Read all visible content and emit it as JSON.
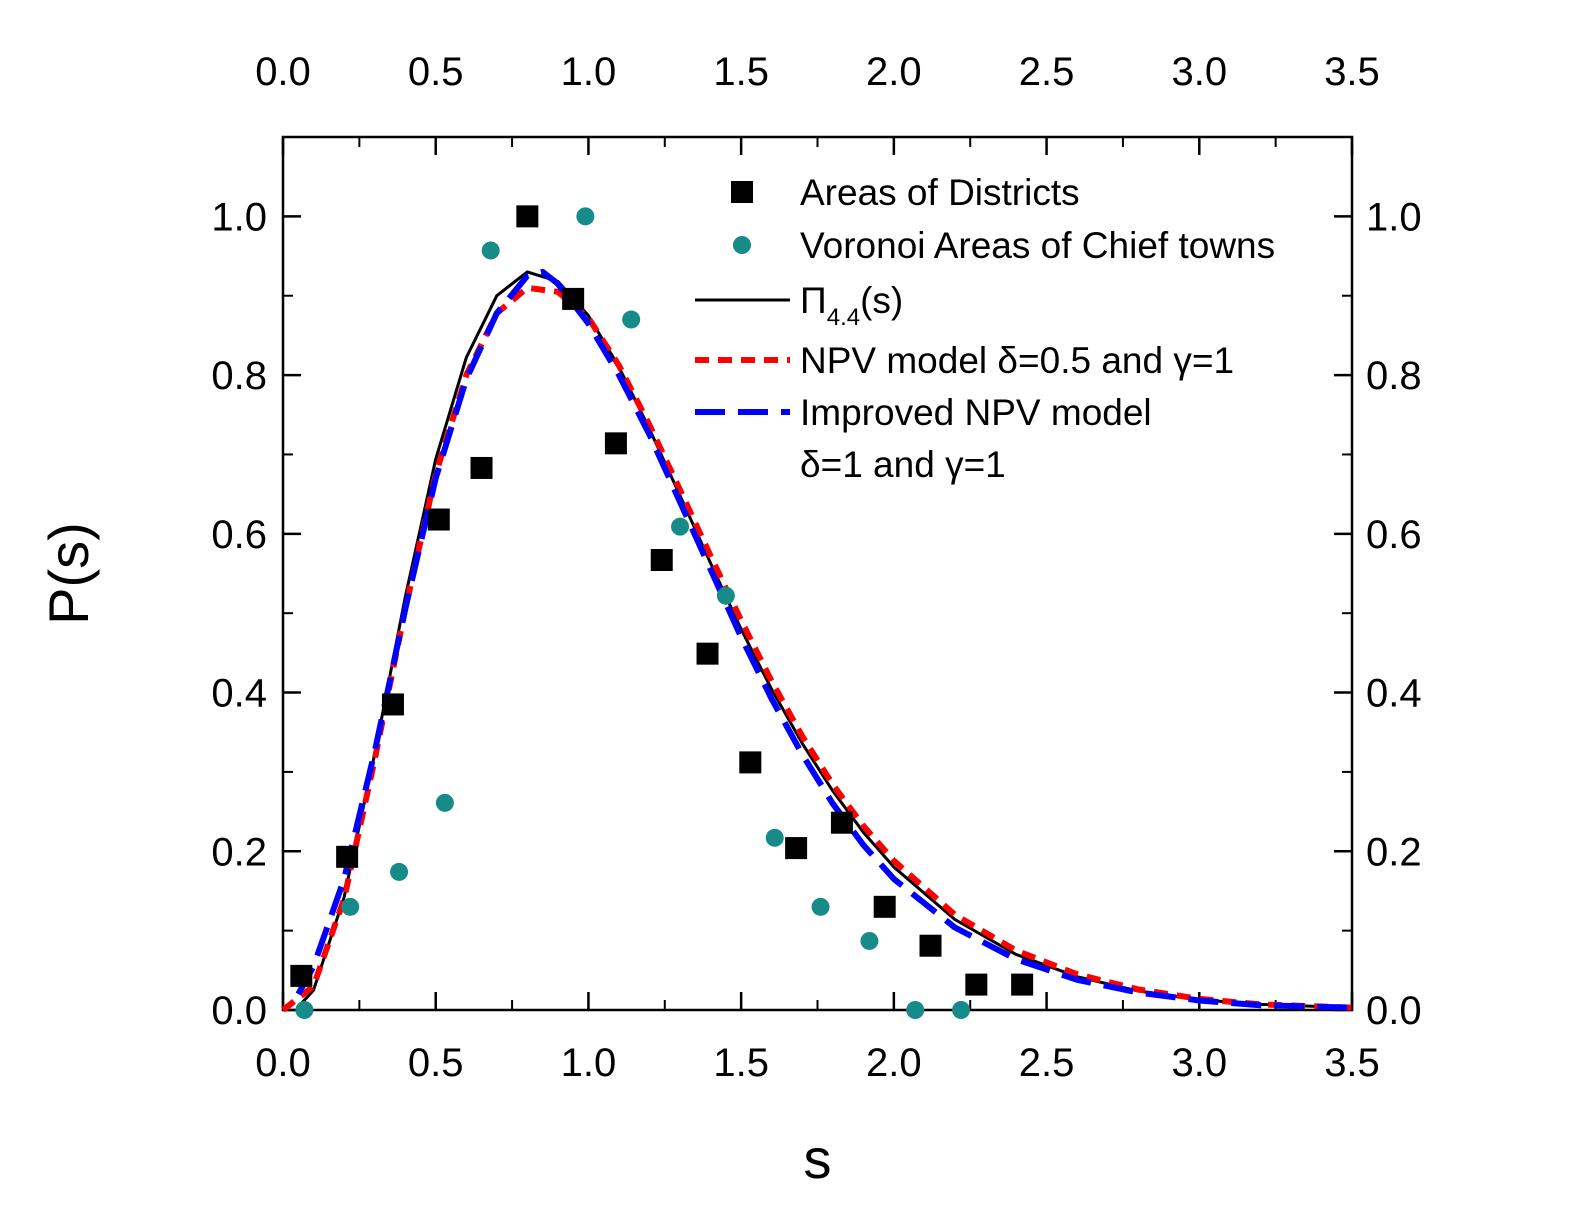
{
  "chart_data": {
    "type": "scatter",
    "xlabel": "s",
    "ylabel": "P(s)",
    "xlim": [
      0.0,
      3.5
    ],
    "ylim": [
      0.0,
      1.1
    ],
    "x_ticks": [
      "0.0",
      "0.5",
      "1.0",
      "1.5",
      "2.0",
      "2.5",
      "3.0",
      "3.5"
    ],
    "y_ticks": [
      "0.0",
      "0.2",
      "0.4",
      "0.6",
      "0.8",
      "1.0"
    ],
    "grid": false,
    "legend_position": "top-right",
    "series": [
      {
        "name": "Areas of Districts",
        "kind": "scatter",
        "marker": "square",
        "color": "#000000",
        "points": [
          [
            0.06,
            0.043
          ],
          [
            0.21,
            0.193
          ],
          [
            0.36,
            0.385
          ],
          [
            0.51,
            0.618
          ],
          [
            0.65,
            0.683
          ],
          [
            0.8,
            1.0
          ],
          [
            0.95,
            0.896
          ],
          [
            1.09,
            0.714
          ],
          [
            1.24,
            0.567
          ],
          [
            1.39,
            0.449
          ],
          [
            1.53,
            0.312
          ],
          [
            1.68,
            0.204
          ],
          [
            1.83,
            0.236
          ],
          [
            1.97,
            0.13
          ],
          [
            2.12,
            0.081
          ],
          [
            2.27,
            0.032
          ],
          [
            2.42,
            0.032
          ]
        ]
      },
      {
        "name": "Voronoi Areas of Chief towns",
        "kind": "scatter",
        "marker": "circle",
        "color": "#178A8A",
        "points": [
          [
            0.07,
            0.0
          ],
          [
            0.22,
            0.13
          ],
          [
            0.38,
            0.174
          ],
          [
            0.53,
            0.261
          ],
          [
            0.68,
            0.957
          ],
          [
            0.99,
            1.0
          ],
          [
            1.14,
            0.87
          ],
          [
            1.3,
            0.609
          ],
          [
            1.45,
            0.522
          ],
          [
            1.61,
            0.217
          ],
          [
            1.76,
            0.13
          ],
          [
            1.92,
            0.087
          ],
          [
            2.07,
            0.0
          ],
          [
            2.22,
            0.0
          ]
        ]
      },
      {
        "name": "Π4.4(s)",
        "name_main": "Π",
        "name_sub": "4.4",
        "name_suffix": "(s)",
        "kind": "line",
        "style": "solid",
        "color": "#000000",
        "points": [
          [
            0.05,
            0.004
          ],
          [
            0.1,
            0.025
          ],
          [
            0.2,
            0.142
          ],
          [
            0.3,
            0.322
          ],
          [
            0.4,
            0.52
          ],
          [
            0.5,
            0.694
          ],
          [
            0.6,
            0.822
          ],
          [
            0.7,
            0.9
          ],
          [
            0.8,
            0.93
          ],
          [
            0.9,
            0.918
          ],
          [
            1.0,
            0.875
          ],
          [
            1.1,
            0.81
          ],
          [
            1.2,
            0.732
          ],
          [
            1.3,
            0.648
          ],
          [
            1.4,
            0.563
          ],
          [
            1.5,
            0.48
          ],
          [
            1.6,
            0.404
          ],
          [
            1.7,
            0.336
          ],
          [
            1.8,
            0.276
          ],
          [
            1.9,
            0.224
          ],
          [
            2.0,
            0.18
          ],
          [
            2.2,
            0.114
          ],
          [
            2.4,
            0.07
          ],
          [
            2.6,
            0.042
          ],
          [
            2.8,
            0.024
          ],
          [
            3.0,
            0.013
          ],
          [
            3.2,
            0.007
          ],
          [
            3.5,
            0.003
          ]
        ]
      },
      {
        "name": "NPV model δ=0.5 and γ=1",
        "kind": "line",
        "style": "short-dash",
        "color": "#FF0000",
        "points": [
          [
            0.0,
            0.0
          ],
          [
            0.1,
            0.03
          ],
          [
            0.2,
            0.14
          ],
          [
            0.3,
            0.315
          ],
          [
            0.4,
            0.505
          ],
          [
            0.5,
            0.675
          ],
          [
            0.6,
            0.8
          ],
          [
            0.7,
            0.878
          ],
          [
            0.8,
            0.91
          ],
          [
            0.9,
            0.905
          ],
          [
            1.0,
            0.872
          ],
          [
            1.1,
            0.812
          ],
          [
            1.2,
            0.737
          ],
          [
            1.3,
            0.655
          ],
          [
            1.4,
            0.572
          ],
          [
            1.5,
            0.491
          ],
          [
            1.6,
            0.414
          ],
          [
            1.7,
            0.345
          ],
          [
            1.8,
            0.284
          ],
          [
            1.9,
            0.232
          ],
          [
            2.0,
            0.188
          ],
          [
            2.2,
            0.12
          ],
          [
            2.4,
            0.075
          ],
          [
            2.6,
            0.045
          ],
          [
            2.8,
            0.026
          ],
          [
            3.0,
            0.014
          ],
          [
            3.2,
            0.007
          ],
          [
            3.5,
            0.003
          ]
        ]
      },
      {
        "name": "Improved NPV model",
        "name_line2": "δ=1 and γ=1",
        "kind": "line",
        "style": "long-dash",
        "color": "#0000FF",
        "points": [
          [
            0.05,
            0.02
          ],
          [
            0.1,
            0.055
          ],
          [
            0.2,
            0.165
          ],
          [
            0.3,
            0.325
          ],
          [
            0.4,
            0.505
          ],
          [
            0.5,
            0.67
          ],
          [
            0.6,
            0.795
          ],
          [
            0.7,
            0.878
          ],
          [
            0.8,
            0.925
          ],
          [
            0.85,
            0.93
          ],
          [
            0.9,
            0.915
          ],
          [
            1.0,
            0.865
          ],
          [
            1.1,
            0.8
          ],
          [
            1.2,
            0.725
          ],
          [
            1.3,
            0.64
          ],
          [
            1.4,
            0.555
          ],
          [
            1.5,
            0.47
          ],
          [
            1.6,
            0.392
          ],
          [
            1.7,
            0.322
          ],
          [
            1.8,
            0.26
          ],
          [
            1.9,
            0.208
          ],
          [
            2.0,
            0.165
          ],
          [
            2.2,
            0.104
          ],
          [
            2.4,
            0.064
          ],
          [
            2.6,
            0.038
          ],
          [
            2.8,
            0.022
          ],
          [
            3.0,
            0.012
          ],
          [
            3.2,
            0.006
          ],
          [
            3.5,
            0.003
          ]
        ]
      }
    ]
  }
}
